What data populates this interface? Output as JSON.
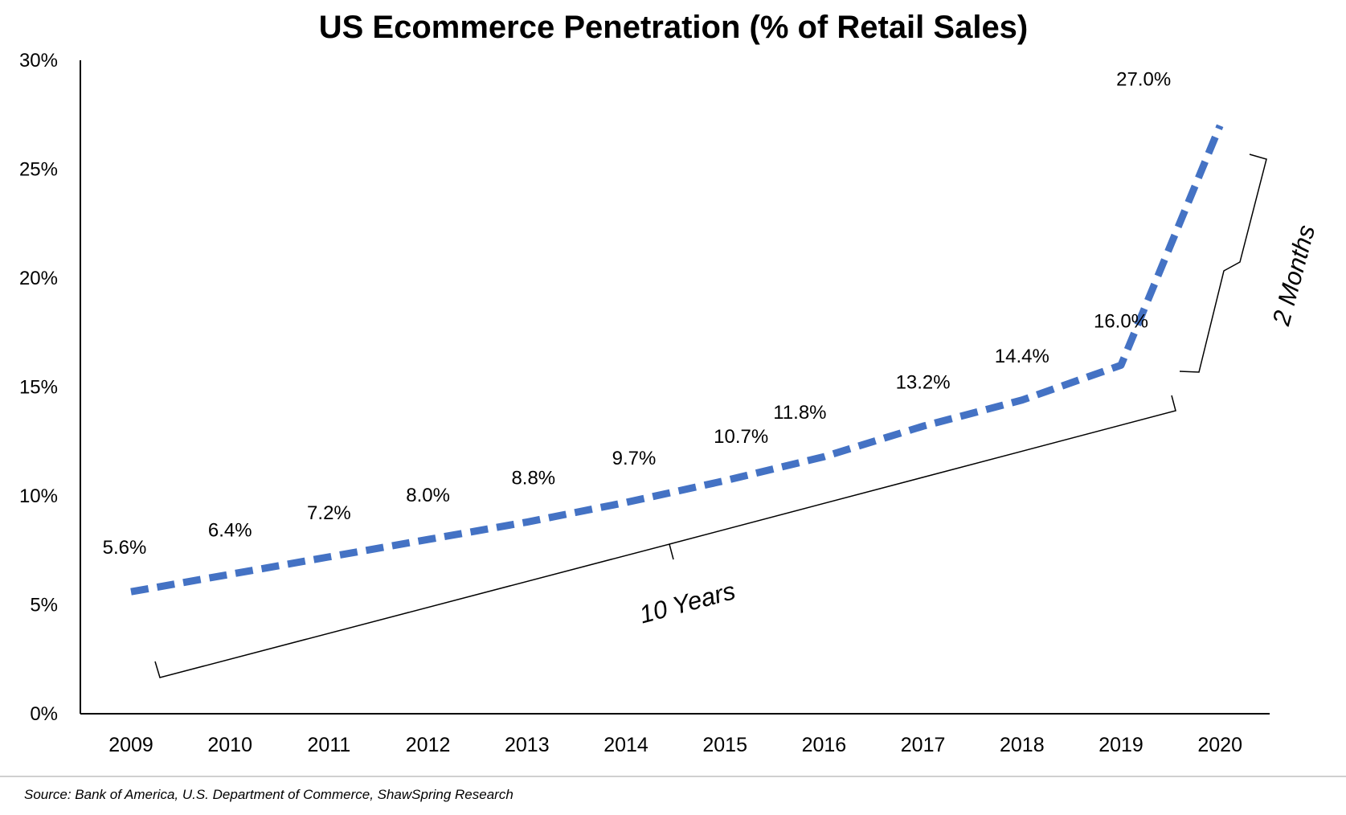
{
  "chart_data": {
    "type": "line",
    "title": "US Ecommerce Penetration (% of Retail Sales)",
    "xlabel": "",
    "ylabel": "",
    "categories": [
      "2009",
      "2010",
      "2011",
      "2012",
      "2013",
      "2014",
      "2015",
      "2016",
      "2017",
      "2018",
      "2019",
      "2020"
    ],
    "series": [
      {
        "values": [
          5.6,
          6.4,
          7.2,
          8.0,
          8.8,
          9.7,
          10.7,
          11.8,
          13.2,
          14.4,
          16.0,
          27.0
        ],
        "data_labels": [
          "5.6%",
          "6.4%",
          "7.2%",
          "8.0%",
          "8.8%",
          "9.7%",
          "10.7%",
          "11.8%",
          "13.2%",
          "14.4%",
          "16.0%",
          "27.0%"
        ],
        "color": "#4472C4",
        "line_style": "dashed"
      }
    ],
    "ylim": [
      0,
      30
    ],
    "yticks": [
      0,
      5,
      10,
      15,
      20,
      25,
      30
    ],
    "ytick_labels": [
      "0%",
      "5%",
      "10%",
      "15%",
      "20%",
      "25%",
      "30%"
    ],
    "grid": false,
    "legend": "none",
    "annotations": [
      "10 Years",
      "2 Months"
    ],
    "source": "Source: Bank of America, U.S. Department of Commerce, ShawSpring Research"
  }
}
